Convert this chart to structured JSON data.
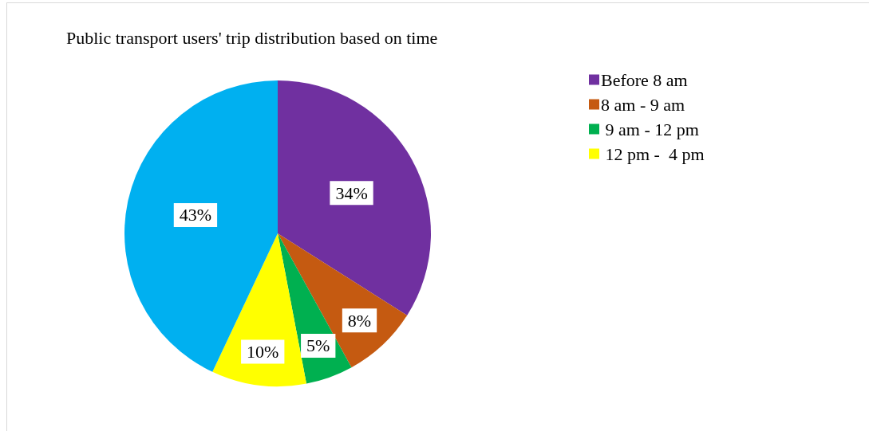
{
  "chart_data": {
    "type": "pie",
    "title": "Public transport users' trip distribution based on time",
    "categories": [
      "Before 8 am",
      "8 am - 9 am",
      " 9 am - 12 pm",
      " 12 pm -  4 pm",
      null
    ],
    "values": [
      34,
      8,
      5,
      10,
      43
    ],
    "value_labels": [
      "34%",
      "8%",
      "5%",
      "10%",
      "43%"
    ],
    "colors": [
      "#7030a0",
      "#c55a11",
      "#00b050",
      "#ffff00",
      "#00b0f0"
    ],
    "legend": "top right"
  }
}
